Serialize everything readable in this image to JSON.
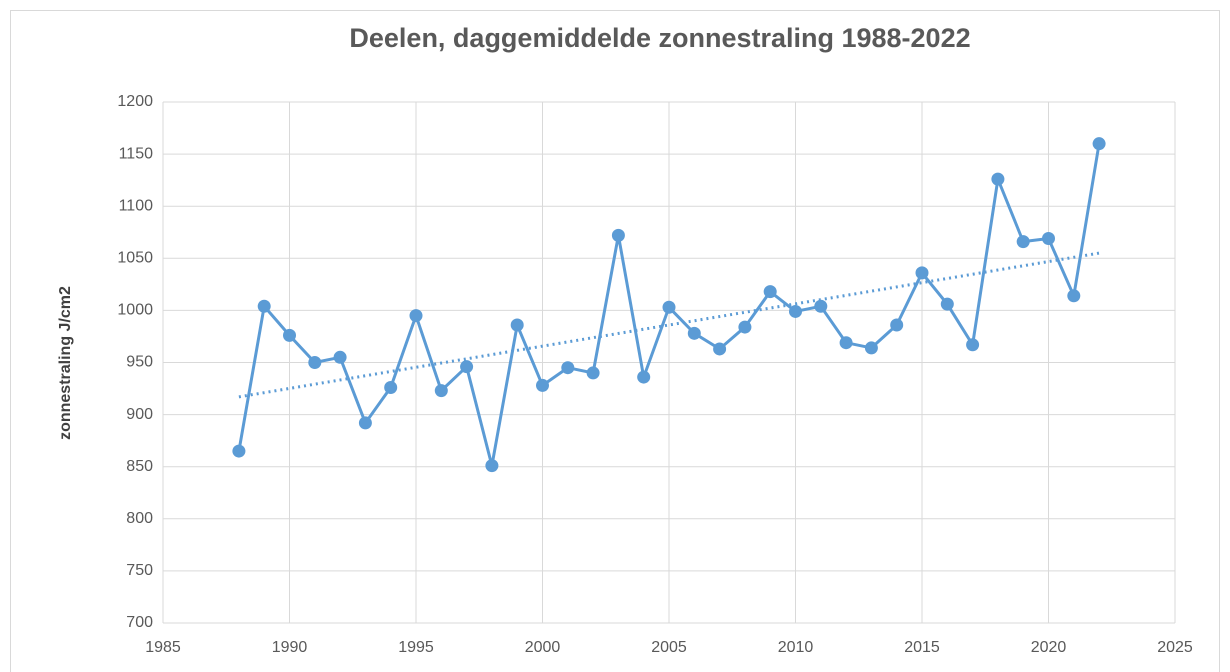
{
  "chart_data": {
    "type": "line",
    "title": "Deelen, daggemiddelde zonnestraling 1988-2022",
    "y_label": "zonnestraling J/cm2",
    "x": [
      1988,
      1989,
      1990,
      1991,
      1992,
      1993,
      1994,
      1995,
      1996,
      1997,
      1998,
      1999,
      2000,
      2001,
      2002,
      2003,
      2004,
      2005,
      2006,
      2007,
      2008,
      2009,
      2010,
      2011,
      2012,
      2013,
      2014,
      2015,
      2016,
      2017,
      2018,
      2019,
      2020,
      2021,
      2022
    ],
    "series": [
      {
        "color": "#5b9bd5",
        "values": [
          865,
          1004,
          976,
          950,
          955,
          892,
          926,
          995,
          923,
          946,
          851,
          986,
          928,
          945,
          940,
          1072,
          936,
          1003,
          978,
          963,
          984,
          1018,
          999,
          1004,
          969,
          964,
          986,
          1036,
          1006,
          967,
          1126,
          1066,
          1069,
          1014,
          1160
        ]
      }
    ],
    "trend": {
      "x": [
        1988,
        2022
      ],
      "values": [
        917,
        1055
      ],
      "color": "#5b9bd5"
    },
    "xlim": [
      1985,
      2025
    ],
    "xticks": [
      1985,
      1990,
      1995,
      2000,
      2005,
      2010,
      2015,
      2020,
      2025
    ],
    "ylim": [
      700,
      1200
    ],
    "yticks": [
      700,
      750,
      800,
      850,
      900,
      950,
      1000,
      1050,
      1100,
      1150,
      1200
    ],
    "grid": true
  }
}
